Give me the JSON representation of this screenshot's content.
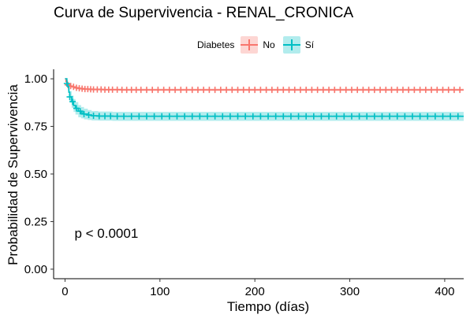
{
  "chart_data": {
    "type": "line",
    "title": "Curva de Supervivencia - RENAL_CRONICA",
    "xlabel": "Tiempo (días)",
    "ylabel": "Probabilidad de Supervivencia",
    "xlim": [
      -12,
      420
    ],
    "ylim": [
      -0.05,
      1.05
    ],
    "x_ticks": [
      0,
      100,
      200,
      300,
      400
    ],
    "x_tick_labels": [
      "0",
      "100",
      "200",
      "300",
      "400"
    ],
    "y_ticks": [
      0,
      0.25,
      0.5,
      0.75,
      1
    ],
    "y_tick_labels": [
      "0.00",
      "0.25",
      "0.50",
      "0.75",
      "1.00"
    ],
    "grid": false,
    "legend": {
      "title": "Diabetes",
      "position": "top"
    },
    "annotation": "p < 0.0001",
    "annotation_at": {
      "x": 10,
      "y": 0.19
    },
    "series": [
      {
        "name": "No",
        "color": "#F8766D",
        "x": [
          0,
          1,
          2,
          3,
          5,
          7,
          10,
          13,
          16,
          20,
          25,
          30,
          40,
          60,
          100,
          420
        ],
        "y": [
          1.0,
          0.985,
          0.975,
          0.968,
          0.962,
          0.958,
          0.953,
          0.95,
          0.948,
          0.946,
          0.945,
          0.944,
          0.943,
          0.942,
          0.942,
          0.942
        ],
        "ci_upper": [
          1.0,
          0.99,
          0.98,
          0.974,
          0.968,
          0.964,
          0.96,
          0.957,
          0.954,
          0.952,
          0.951,
          0.95,
          0.949,
          0.948,
          0.948,
          0.948
        ],
        "ci_lower": [
          1.0,
          0.98,
          0.97,
          0.962,
          0.956,
          0.952,
          0.947,
          0.943,
          0.941,
          0.94,
          0.939,
          0.938,
          0.937,
          0.936,
          0.936,
          0.936
        ],
        "censor_x": [
          3,
          6,
          9,
          12,
          15,
          18,
          21,
          24,
          27,
          30,
          34,
          38,
          42,
          46,
          50,
          55,
          60,
          65,
          70,
          75,
          80,
          86,
          92,
          98,
          104,
          110,
          116,
          122,
          128,
          134,
          140,
          146,
          152,
          158,
          164,
          170,
          176,
          182,
          188,
          194,
          200,
          206,
          212,
          218,
          224,
          230,
          236,
          242,
          248,
          254,
          260,
          266,
          272,
          278,
          284,
          290,
          296,
          302,
          308,
          314,
          320,
          326,
          332,
          338,
          344,
          350,
          356,
          362,
          368,
          374,
          380,
          386,
          392,
          398,
          404,
          410,
          416
        ]
      },
      {
        "name": "Sí",
        "color": "#00BFC4",
        "x": [
          0,
          2,
          3,
          4,
          5,
          7,
          9,
          11,
          14,
          17,
          20,
          24,
          28,
          35,
          50,
          420
        ],
        "y": [
          1.0,
          0.975,
          0.96,
          0.93,
          0.905,
          0.88,
          0.86,
          0.845,
          0.83,
          0.822,
          0.815,
          0.81,
          0.806,
          0.804,
          0.803,
          0.803
        ],
        "ci_upper": [
          1.0,
          0.99,
          0.98,
          0.955,
          0.935,
          0.912,
          0.894,
          0.878,
          0.862,
          0.852,
          0.843,
          0.836,
          0.831,
          0.828,
          0.826,
          0.826
        ],
        "ci_lower": [
          1.0,
          0.96,
          0.94,
          0.905,
          0.875,
          0.848,
          0.826,
          0.812,
          0.798,
          0.792,
          0.787,
          0.784,
          0.781,
          0.78,
          0.779,
          0.779
        ],
        "censor_x": [
          2,
          5,
          8,
          12,
          16,
          20,
          25,
          30,
          36,
          42,
          48,
          55,
          62,
          70,
          78,
          86,
          94,
          102,
          110,
          118,
          126,
          134,
          142,
          150,
          158,
          166,
          174,
          182,
          190,
          198,
          206,
          214,
          222,
          230,
          238,
          246,
          254,
          262,
          270,
          278,
          286,
          294,
          302,
          310,
          318,
          326,
          334,
          342,
          350,
          358,
          366,
          374,
          382,
          390,
          398,
          406,
          414
        ]
      }
    ]
  }
}
